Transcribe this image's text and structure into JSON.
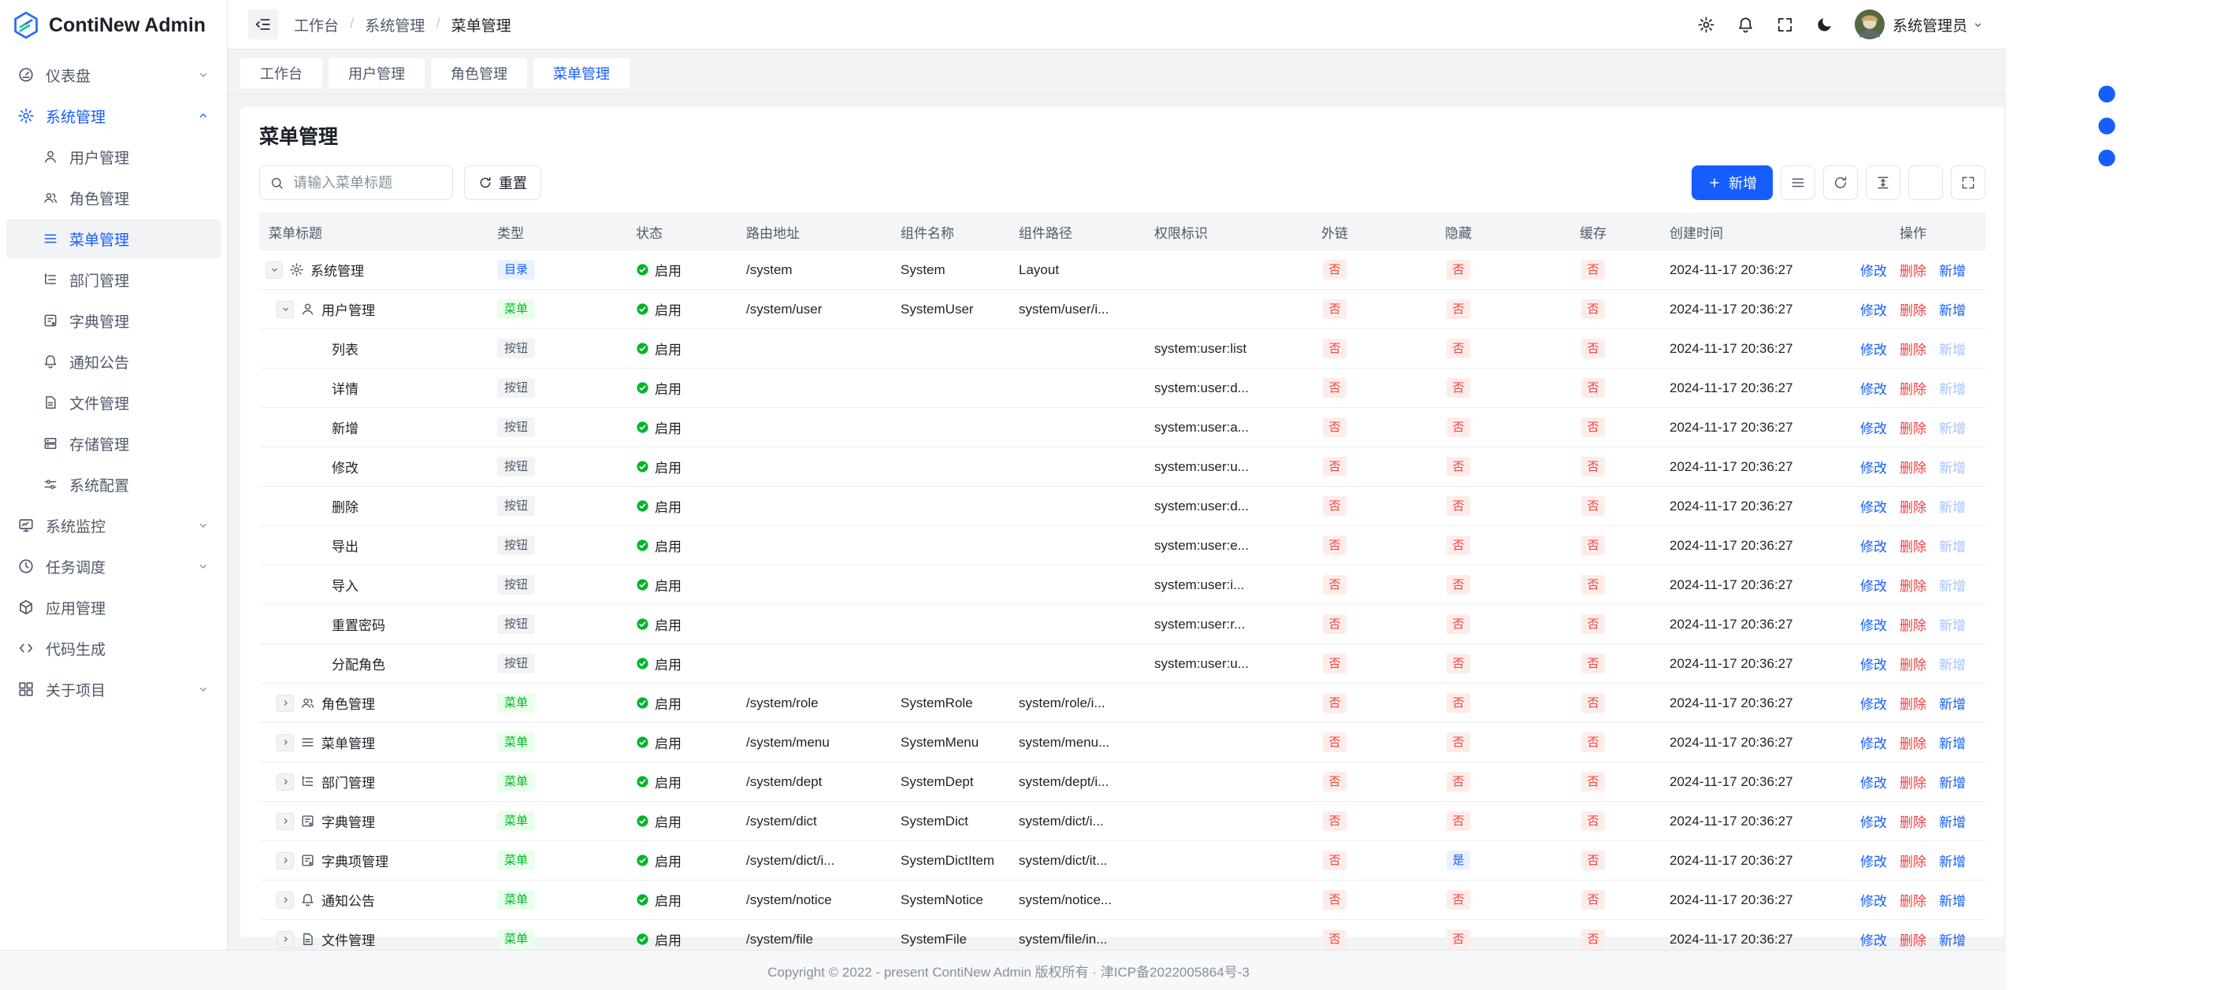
{
  "colors": {
    "primary": "#165dff",
    "success": "#00b42a",
    "danger": "#f53f3f"
  },
  "app_title": "ContiNew Admin",
  "sidebar": {
    "items": [
      {
        "label": "仪表盘",
        "icon": "dashboard-icon",
        "chevron": "down"
      },
      {
        "label": "系统管理",
        "icon": "settings-icon",
        "chevron": "up",
        "active": true,
        "children": [
          {
            "label": "用户管理",
            "icon": "user-icon"
          },
          {
            "label": "角色管理",
            "icon": "users-icon"
          },
          {
            "label": "菜单管理",
            "icon": "menu-icon",
            "selected": true
          },
          {
            "label": "部门管理",
            "icon": "dept-icon"
          },
          {
            "label": "字典管理",
            "icon": "dict-icon"
          },
          {
            "label": "通知公告",
            "icon": "bell-icon"
          },
          {
            "label": "文件管理",
            "icon": "file-icon"
          },
          {
            "label": "存储管理",
            "icon": "storage-icon"
          },
          {
            "label": "系统配置",
            "icon": "sliders-icon"
          }
        ]
      },
      {
        "label": "系统监控",
        "icon": "monitor-icon",
        "chevron": "down"
      },
      {
        "label": "任务调度",
        "icon": "clock-icon",
        "chevron": "down"
      },
      {
        "label": "应用管理",
        "icon": "app-icon"
      },
      {
        "label": "代码生成",
        "icon": "code-icon"
      },
      {
        "label": "关于项目",
        "icon": "grid-icon",
        "chevron": "down"
      }
    ]
  },
  "topbar": {
    "breadcrumb": [
      "工作台",
      "系统管理",
      "菜单管理"
    ],
    "separator": "/",
    "action_icons": [
      "settings-icon",
      "bell-icon",
      "fullscreen-icon",
      "moon-icon"
    ],
    "username": "系统管理员"
  },
  "tabbar": {
    "tabs": [
      "工作台",
      "用户管理",
      "角色管理",
      "菜单管理"
    ],
    "active": "菜单管理"
  },
  "page": {
    "title": "菜单管理",
    "search_placeholder": "请输入菜单标题",
    "reset_label": "重置",
    "add_label": "新增",
    "toolbar_icons": [
      "list-icon",
      "refresh-icon",
      "row-height-icon",
      "gear-icon",
      "fullscreen-icon"
    ]
  },
  "table": {
    "columns": [
      "菜单标题",
      "类型",
      "状态",
      "路由地址",
      "组件名称",
      "组件路径",
      "权限标识",
      "外链",
      "隐藏",
      "缓存",
      "创建时间",
      "操作"
    ],
    "ops": {
      "edit": "修改",
      "delete": "删除",
      "add": "新增"
    },
    "rows": [
      {
        "level": 0,
        "expand": "down",
        "icon": "settings-icon",
        "title": "系统管理",
        "type": "目录",
        "status": "启用",
        "route": "/system",
        "component_name": "System",
        "component_path": "Layout",
        "permission": "",
        "external": "否",
        "hidden": "否",
        "cache": "否",
        "created": "2024-11-17 20:36:27",
        "add_disabled": false
      },
      {
        "level": 1,
        "expand": "down",
        "icon": "user-icon",
        "title": "用户管理",
        "type": "菜单",
        "status": "启用",
        "route": "/system/user",
        "component_name": "SystemUser",
        "component_path": "system/user/i...",
        "permission": "",
        "external": "否",
        "hidden": "否",
        "cache": "否",
        "created": "2024-11-17 20:36:27",
        "add_disabled": false
      },
      {
        "level": 2,
        "expand": null,
        "icon": null,
        "title": "列表",
        "type": "按钮",
        "status": "启用",
        "route": "",
        "component_name": "",
        "component_path": "",
        "permission": "system:user:list",
        "external": "否",
        "hidden": "否",
        "cache": "否",
        "created": "2024-11-17 20:36:27",
        "add_disabled": true
      },
      {
        "level": 2,
        "expand": null,
        "icon": null,
        "title": "详情",
        "type": "按钮",
        "status": "启用",
        "route": "",
        "component_name": "",
        "component_path": "",
        "permission": "system:user:d...",
        "external": "否",
        "hidden": "否",
        "cache": "否",
        "created": "2024-11-17 20:36:27",
        "add_disabled": true
      },
      {
        "level": 2,
        "expand": null,
        "icon": null,
        "title": "新增",
        "type": "按钮",
        "status": "启用",
        "route": "",
        "component_name": "",
        "component_path": "",
        "permission": "system:user:a...",
        "external": "否",
        "hidden": "否",
        "cache": "否",
        "created": "2024-11-17 20:36:27",
        "add_disabled": true
      },
      {
        "level": 2,
        "expand": null,
        "icon": null,
        "title": "修改",
        "type": "按钮",
        "status": "启用",
        "route": "",
        "component_name": "",
        "component_path": "",
        "permission": "system:user:u...",
        "external": "否",
        "hidden": "否",
        "cache": "否",
        "created": "2024-11-17 20:36:27",
        "add_disabled": true
      },
      {
        "level": 2,
        "expand": null,
        "icon": null,
        "title": "删除",
        "type": "按钮",
        "status": "启用",
        "route": "",
        "component_name": "",
        "component_path": "",
        "permission": "system:user:d...",
        "external": "否",
        "hidden": "否",
        "cache": "否",
        "created": "2024-11-17 20:36:27",
        "add_disabled": true
      },
      {
        "level": 2,
        "expand": null,
        "icon": null,
        "title": "导出",
        "type": "按钮",
        "status": "启用",
        "route": "",
        "component_name": "",
        "component_path": "",
        "permission": "system:user:e...",
        "external": "否",
        "hidden": "否",
        "cache": "否",
        "created": "2024-11-17 20:36:27",
        "add_disabled": true
      },
      {
        "level": 2,
        "expand": null,
        "icon": null,
        "title": "导入",
        "type": "按钮",
        "status": "启用",
        "route": "",
        "component_name": "",
        "component_path": "",
        "permission": "system:user:i...",
        "external": "否",
        "hidden": "否",
        "cache": "否",
        "created": "2024-11-17 20:36:27",
        "add_disabled": true
      },
      {
        "level": 2,
        "expand": null,
        "icon": null,
        "title": "重置密码",
        "type": "按钮",
        "status": "启用",
        "route": "",
        "component_name": "",
        "component_path": "",
        "permission": "system:user:r...",
        "external": "否",
        "hidden": "否",
        "cache": "否",
        "created": "2024-11-17 20:36:27",
        "add_disabled": true
      },
      {
        "level": 2,
        "expand": null,
        "icon": null,
        "title": "分配角色",
        "type": "按钮",
        "status": "启用",
        "route": "",
        "component_name": "",
        "component_path": "",
        "permission": "system:user:u...",
        "external": "否",
        "hidden": "否",
        "cache": "否",
        "created": "2024-11-17 20:36:27",
        "add_disabled": true
      },
      {
        "level": 1,
        "expand": "right",
        "icon": "users-icon",
        "title": "角色管理",
        "type": "菜单",
        "status": "启用",
        "route": "/system/role",
        "component_name": "SystemRole",
        "component_path": "system/role/i...",
        "permission": "",
        "external": "否",
        "hidden": "否",
        "cache": "否",
        "created": "2024-11-17 20:36:27",
        "add_disabled": false
      },
      {
        "level": 1,
        "expand": "right",
        "icon": "menu-icon",
        "title": "菜单管理",
        "type": "菜单",
        "status": "启用",
        "route": "/system/menu",
        "component_name": "SystemMenu",
        "component_path": "system/menu...",
        "permission": "",
        "external": "否",
        "hidden": "否",
        "cache": "否",
        "created": "2024-11-17 20:36:27",
        "add_disabled": false
      },
      {
        "level": 1,
        "expand": "right",
        "icon": "dept-icon",
        "title": "部门管理",
        "type": "菜单",
        "status": "启用",
        "route": "/system/dept",
        "component_name": "SystemDept",
        "component_path": "system/dept/i...",
        "permission": "",
        "external": "否",
        "hidden": "否",
        "cache": "否",
        "created": "2024-11-17 20:36:27",
        "add_disabled": false
      },
      {
        "level": 1,
        "expand": "right",
        "icon": "dict-icon",
        "title": "字典管理",
        "type": "菜单",
        "status": "启用",
        "route": "/system/dict",
        "component_name": "SystemDict",
        "component_path": "system/dict/i...",
        "permission": "",
        "external": "否",
        "hidden": "否",
        "cache": "否",
        "created": "2024-11-17 20:36:27",
        "add_disabled": false
      },
      {
        "level": 1,
        "expand": "right",
        "icon": "dict-icon",
        "title": "字典项管理",
        "type": "菜单",
        "status": "启用",
        "route": "/system/dict/i...",
        "component_name": "SystemDictItem",
        "component_path": "system/dict/it...",
        "permission": "",
        "external": "否",
        "hidden": "是",
        "cache": "否",
        "created": "2024-11-17 20:36:27",
        "add_disabled": false
      },
      {
        "level": 1,
        "expand": "right",
        "icon": "bell-icon",
        "title": "通知公告",
        "type": "菜单",
        "status": "启用",
        "route": "/system/notice",
        "component_name": "SystemNotice",
        "component_path": "system/notice...",
        "permission": "",
        "external": "否",
        "hidden": "否",
        "cache": "否",
        "created": "2024-11-17 20:36:27",
        "add_disabled": false
      },
      {
        "level": 1,
        "expand": "right",
        "icon": "file-icon",
        "title": "文件管理",
        "type": "菜单",
        "status": "启用",
        "route": "/system/file",
        "component_name": "SystemFile",
        "component_path": "system/file/in...",
        "permission": "",
        "external": "否",
        "hidden": "否",
        "cache": "否",
        "created": "2024-11-17 20:36:27",
        "add_disabled": false
      }
    ]
  },
  "footer": {
    "copyright": "Copyright © 2022 - present ContiNew Admin 版权所有 · 津ICP备2022005864号-3"
  }
}
